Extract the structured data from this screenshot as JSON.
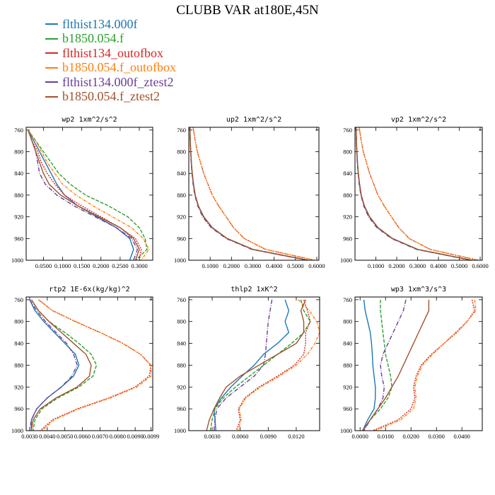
{
  "title": "CLUBB VAR at180E,45N",
  "legend": [
    {
      "name": "flthist134.000f",
      "color": "#1f77b4"
    },
    {
      "name": "b1850.054.f",
      "color": "#2ca02c"
    },
    {
      "name": "flthist134_outofbox",
      "color": "#d62728"
    },
    {
      "name": "b1850.054.f_outofbox",
      "color": "#ff7f0e"
    },
    {
      "name": "flthist134.000f_ztest2",
      "color": "#6a3d9a"
    },
    {
      "name": "b1850.054.f_ztest2",
      "color": "#a0522d"
    }
  ],
  "chart_data": [
    {
      "type": "line",
      "title": "wp2   1xm^2/s^2",
      "ylim": [
        755,
        1000
      ],
      "yinvert": true,
      "yticks": [
        "760",
        "800",
        "840",
        "880",
        "920",
        "960",
        "1000"
      ],
      "xlim": [
        0.005,
        0.335
      ],
      "xticks": [
        "0.0500",
        "0.1000",
        "0.1500",
        "0.2000",
        "0.2500",
        "0.3000"
      ],
      "y": [
        760,
        780,
        800,
        820,
        840,
        860,
        880,
        900,
        920,
        940,
        960,
        980,
        1000
      ],
      "series": [
        {
          "name": "flthist134.000f",
          "values": [
            0.01,
            0.025,
            0.04,
            0.055,
            0.07,
            0.085,
            0.105,
            0.14,
            0.19,
            0.24,
            0.275,
            0.285,
            0.275
          ]
        },
        {
          "name": "b1850.054.f",
          "values": [
            0.01,
            0.03,
            0.05,
            0.07,
            0.09,
            0.12,
            0.16,
            0.22,
            0.27,
            0.3,
            0.315,
            0.32,
            0.29
          ]
        },
        {
          "name": "flthist134_outofbox",
          "values": [
            0.01,
            0.02,
            0.035,
            0.045,
            0.06,
            0.08,
            0.105,
            0.15,
            0.2,
            0.25,
            0.29,
            0.305,
            0.3
          ]
        },
        {
          "name": "b1850.054.f_outofbox",
          "values": [
            0.01,
            0.03,
            0.045,
            0.06,
            0.08,
            0.1,
            0.135,
            0.18,
            0.23,
            0.28,
            0.31,
            0.325,
            0.305
          ]
        },
        {
          "name": "flthist134.000f_ztest2",
          "values": [
            0.01,
            0.02,
            0.03,
            0.035,
            0.04,
            0.055,
            0.085,
            0.13,
            0.185,
            0.24,
            0.28,
            0.295,
            0.285
          ]
        },
        {
          "name": "b1850.054.f_ztest2",
          "values": [
            0.01,
            0.02,
            0.03,
            0.04,
            0.05,
            0.065,
            0.095,
            0.14,
            0.195,
            0.25,
            0.285,
            0.3,
            0.29
          ]
        }
      ]
    },
    {
      "type": "line",
      "title": "up2   1xm^2/s^2",
      "ylim": [
        755,
        1000
      ],
      "yinvert": true,
      "yticks": [
        "760",
        "800",
        "840",
        "880",
        "920",
        "960",
        "1000"
      ],
      "xlim": [
        0.0,
        0.61
      ],
      "xticks": [
        "0.1000",
        "0.2000",
        "0.3000",
        "0.4000",
        "0.5000",
        "0.6000"
      ],
      "y": [
        755,
        780,
        800,
        820,
        840,
        860,
        880,
        900,
        920,
        940,
        960,
        980,
        1000
      ],
      "series": [
        {
          "name": "flthist134.000f",
          "values": [
            0.005,
            0.007,
            0.009,
            0.012,
            0.016,
            0.022,
            0.03,
            0.045,
            0.07,
            0.11,
            0.18,
            0.3,
            0.56
          ]
        },
        {
          "name": "b1850.054.f",
          "values": [
            0.005,
            0.007,
            0.009,
            0.012,
            0.016,
            0.022,
            0.03,
            0.045,
            0.07,
            0.11,
            0.18,
            0.3,
            0.56
          ]
        },
        {
          "name": "flthist134_outofbox",
          "values": [
            0.02,
            0.03,
            0.04,
            0.055,
            0.07,
            0.09,
            0.11,
            0.14,
            0.175,
            0.21,
            0.26,
            0.36,
            0.59
          ]
        },
        {
          "name": "b1850.054.f_outofbox",
          "values": [
            0.02,
            0.03,
            0.04,
            0.055,
            0.07,
            0.09,
            0.11,
            0.14,
            0.175,
            0.21,
            0.26,
            0.36,
            0.59
          ]
        },
        {
          "name": "flthist134.000f_ztest2",
          "values": [
            0.005,
            0.006,
            0.008,
            0.011,
            0.015,
            0.02,
            0.028,
            0.042,
            0.065,
            0.105,
            0.175,
            0.295,
            0.555
          ]
        },
        {
          "name": "b1850.054.f_ztest2",
          "values": [
            0.005,
            0.007,
            0.009,
            0.012,
            0.016,
            0.022,
            0.03,
            0.045,
            0.07,
            0.11,
            0.18,
            0.3,
            0.56
          ]
        }
      ]
    },
    {
      "type": "line",
      "title": "vp2   1xm^2/s^2",
      "ylim": [
        755,
        1000
      ],
      "yinvert": true,
      "yticks": [
        "760",
        "800",
        "840",
        "880",
        "920",
        "960",
        "1000"
      ],
      "xlim": [
        0.0,
        0.61
      ],
      "xticks": [
        "0.1000",
        "0.2000",
        "0.3000",
        "0.4000",
        "0.5000",
        "0.6000"
      ],
      "y": [
        755,
        780,
        800,
        820,
        840,
        860,
        880,
        900,
        920,
        940,
        960,
        980,
        1000
      ],
      "series": [
        {
          "name": "flthist134.000f",
          "values": [
            0.005,
            0.007,
            0.009,
            0.012,
            0.016,
            0.022,
            0.03,
            0.045,
            0.07,
            0.11,
            0.18,
            0.3,
            0.56
          ]
        },
        {
          "name": "b1850.054.f",
          "values": [
            0.005,
            0.007,
            0.009,
            0.012,
            0.016,
            0.022,
            0.03,
            0.045,
            0.07,
            0.11,
            0.18,
            0.3,
            0.56
          ]
        },
        {
          "name": "flthist134_outofbox",
          "values": [
            0.02,
            0.03,
            0.04,
            0.055,
            0.07,
            0.09,
            0.11,
            0.14,
            0.175,
            0.21,
            0.26,
            0.36,
            0.59
          ]
        },
        {
          "name": "b1850.054.f_outofbox",
          "values": [
            0.02,
            0.03,
            0.04,
            0.055,
            0.07,
            0.09,
            0.11,
            0.14,
            0.175,
            0.21,
            0.26,
            0.36,
            0.59
          ]
        },
        {
          "name": "flthist134.000f_ztest2",
          "values": [
            0.005,
            0.006,
            0.008,
            0.011,
            0.015,
            0.02,
            0.028,
            0.042,
            0.065,
            0.105,
            0.175,
            0.295,
            0.555
          ]
        },
        {
          "name": "b1850.054.f_ztest2",
          "values": [
            0.005,
            0.007,
            0.009,
            0.012,
            0.016,
            0.022,
            0.03,
            0.045,
            0.07,
            0.11,
            0.18,
            0.3,
            0.56
          ]
        }
      ]
    },
    {
      "type": "line",
      "title": "rtp2   1E-6x(kg/kg)^2",
      "ylim": [
        755,
        1000
      ],
      "yinvert": true,
      "yticks": [
        "760",
        "800",
        "840",
        "880",
        "920",
        "960",
        "1000"
      ],
      "xlim": [
        0.0028,
        0.01
      ],
      "xticks": [
        "0.0030",
        "0.0040",
        "0.0050",
        "0.0060",
        "0.0070",
        "0.0080",
        "0.0090",
        "0.0099"
      ],
      "y": [
        760,
        780,
        800,
        820,
        840,
        860,
        880,
        900,
        920,
        940,
        960,
        980,
        1000
      ],
      "series": [
        {
          "name": "flthist134.000f",
          "values": [
            0.003,
            0.0033,
            0.0038,
            0.0044,
            0.005,
            0.0056,
            0.0058,
            0.0055,
            0.0048,
            0.004,
            0.0034,
            0.0031,
            0.0031
          ]
        },
        {
          "name": "b1850.054.f",
          "values": [
            0.0031,
            0.0035,
            0.0041,
            0.005,
            0.0058,
            0.0065,
            0.0068,
            0.0066,
            0.0058,
            0.0046,
            0.0037,
            0.0033,
            0.0032
          ]
        },
        {
          "name": "flthist134_outofbox",
          "values": [
            0.0035,
            0.0043,
            0.0056,
            0.007,
            0.0083,
            0.0093,
            0.0099,
            0.0098,
            0.009,
            0.0075,
            0.0057,
            0.0043,
            0.0036
          ]
        },
        {
          "name": "b1850.054.f_outofbox",
          "values": [
            0.0035,
            0.0043,
            0.0056,
            0.007,
            0.0083,
            0.0093,
            0.0099,
            0.0099,
            0.0091,
            0.0076,
            0.0058,
            0.0044,
            0.0037
          ]
        },
        {
          "name": "flthist134.000f_ztest2",
          "values": [
            0.003,
            0.0034,
            0.0039,
            0.0045,
            0.0051,
            0.0055,
            0.0057,
            0.0054,
            0.0048,
            0.004,
            0.0034,
            0.0031,
            0.003
          ]
        },
        {
          "name": "b1850.054.f_ztest2",
          "values": [
            0.0031,
            0.0035,
            0.0041,
            0.0048,
            0.0055,
            0.0062,
            0.0065,
            0.0064,
            0.0057,
            0.0045,
            0.0036,
            0.0032,
            0.0031
          ]
        }
      ]
    },
    {
      "type": "line",
      "title": "thlp2   1xK^2",
      "ylim": [
        755,
        1000
      ],
      "yinvert": true,
      "yticks": [
        "760",
        "800",
        "840",
        "880",
        "920",
        "960",
        "1000"
      ],
      "xlim": [
        0.0005,
        0.0145
      ],
      "xticks": [
        "0.0030",
        "0.0060",
        "0.0090",
        "0.0120"
      ],
      "y": [
        760,
        780,
        800,
        820,
        840,
        860,
        880,
        900,
        920,
        940,
        960,
        980,
        1000
      ],
      "series": [
        {
          "name": "flthist134.000f",
          "values": [
            0.0108,
            0.0112,
            0.0108,
            0.0112,
            0.01,
            0.0085,
            0.0075,
            0.0062,
            0.005,
            0.004,
            0.0032,
            0.0033,
            0.0034
          ]
        },
        {
          "name": "b1850.054.f",
          "values": [
            0.0125,
            0.0128,
            0.0135,
            0.0128,
            0.0115,
            0.01,
            0.0085,
            0.007,
            0.0055,
            0.0042,
            0.0033,
            0.003,
            0.0028
          ]
        },
        {
          "name": "flthist134_outofbox",
          "values": [
            0.0128,
            0.0132,
            0.0135,
            0.013,
            0.013,
            0.0128,
            0.0118,
            0.01,
            0.008,
            0.0065,
            0.0058,
            0.006,
            0.0056
          ]
        },
        {
          "name": "b1850.054.f_outofbox",
          "values": [
            0.0122,
            0.0134,
            0.0142,
            0.0145,
            0.014,
            0.0132,
            0.012,
            0.0102,
            0.0082,
            0.0066,
            0.0059,
            0.0061,
            0.0058
          ]
        },
        {
          "name": "flthist134.000f_ztest2",
          "values": [
            0.0094,
            0.0092,
            0.009,
            0.0089,
            0.0088,
            0.0087,
            0.0085,
            0.0075,
            0.006,
            0.0045,
            0.0035,
            0.0033,
            0.0032
          ]
        },
        {
          "name": "b1850.054.f_ztest2",
          "values": [
            0.013,
            0.0125,
            0.0128,
            0.0128,
            0.012,
            0.01,
            0.008,
            0.006,
            0.0045,
            0.0038,
            0.0032,
            0.0027,
            0.0024
          ]
        }
      ]
    },
    {
      "type": "line",
      "title": "wp3   1xm^3/s^3",
      "ylim": [
        755,
        1000
      ],
      "yinvert": true,
      "yticks": [
        "760",
        "800",
        "840",
        "880",
        "920",
        "960",
        "1000"
      ],
      "xlim": [
        -0.002,
        0.048
      ],
      "xticks": [
        "0.0000",
        "0.0100",
        "0.0200",
        "0.0300",
        "0.0400"
      ],
      "y": [
        760,
        780,
        800,
        820,
        840,
        860,
        880,
        900,
        920,
        940,
        960,
        980,
        1000
      ],
      "series": [
        {
          "name": "flthist134.000f",
          "values": [
            0.0015,
            0.002,
            0.003,
            0.004,
            0.0045,
            0.0048,
            0.005,
            0.0055,
            0.006,
            0.006,
            0.0055,
            0.003,
            0.001
          ]
        },
        {
          "name": "b1850.054.f",
          "values": [
            0.008,
            0.008,
            0.0085,
            0.009,
            0.0095,
            0.01,
            0.011,
            0.012,
            0.0125,
            0.011,
            0.008,
            0.004,
            0.001
          ]
        },
        {
          "name": "flthist134_outofbox",
          "values": [
            0.044,
            0.045,
            0.042,
            0.038,
            0.033,
            0.028,
            0.024,
            0.022,
            0.021,
            0.0215,
            0.02,
            0.015,
            0.005
          ]
        },
        {
          "name": "b1850.054.f_outofbox",
          "values": [
            0.045,
            0.0455,
            0.042,
            0.0375,
            0.033,
            0.0285,
            0.0245,
            0.0225,
            0.0215,
            0.022,
            0.021,
            0.016,
            0.006
          ]
        },
        {
          "name": "flthist134.000f_ztest2",
          "values": [
            0.018,
            0.017,
            0.015,
            0.013,
            0.011,
            0.009,
            0.008,
            0.0085,
            0.0095,
            0.009,
            0.007,
            0.004,
            0.0015
          ]
        },
        {
          "name": "b1850.054.f_ztest2",
          "values": [
            0.027,
            0.027,
            0.025,
            0.023,
            0.021,
            0.019,
            0.017,
            0.015,
            0.0125,
            0.01,
            0.007,
            0.004,
            0.001
          ]
        }
      ]
    }
  ]
}
